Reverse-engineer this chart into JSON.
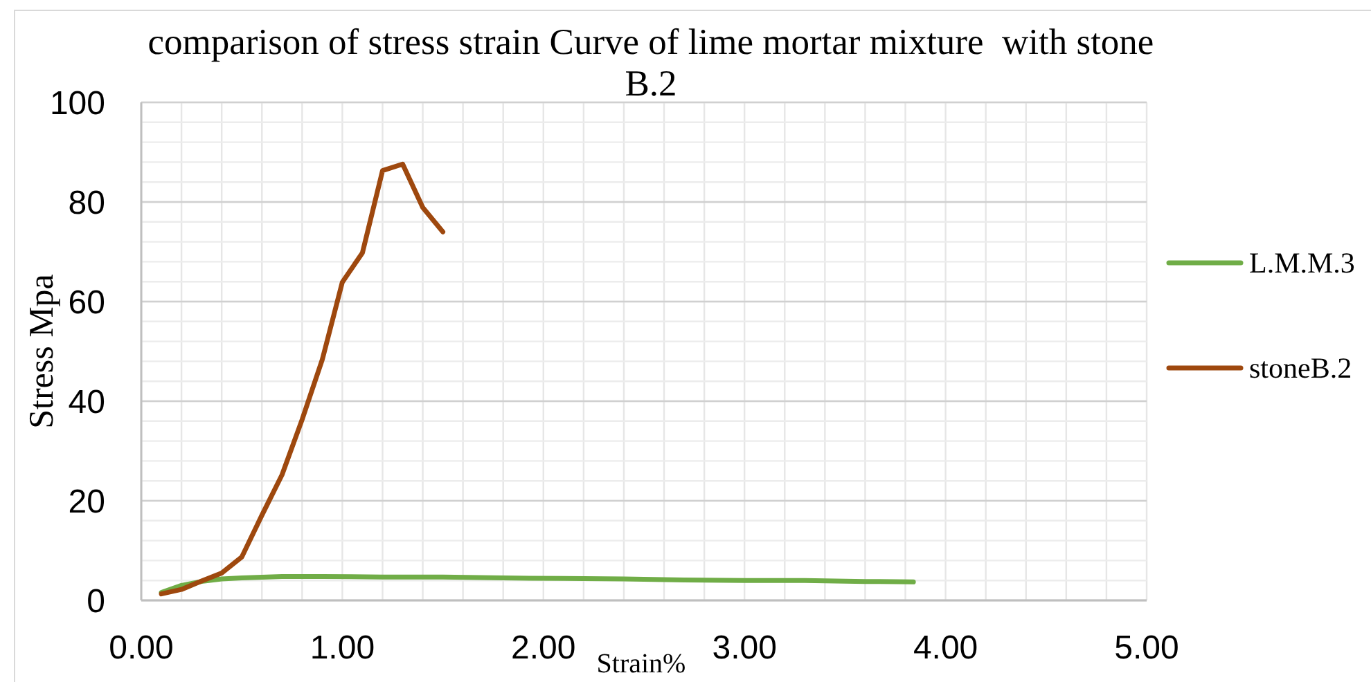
{
  "chart_data": {
    "type": "line",
    "title": "comparison of stress strain Curve of lime mortar mixture  with stone B.2",
    "xlabel": "Strain%",
    "ylabel": "Stress Mpa",
    "series": [
      {
        "name": "L.M.M.3",
        "color": "#70ad47",
        "x": [
          0.1,
          0.2,
          0.3,
          0.4,
          0.5,
          0.7,
          0.9,
          1.2,
          1.5,
          1.8,
          2.1,
          2.4,
          2.7,
          3.0,
          3.3,
          3.6,
          3.84
        ],
        "values": [
          1.6,
          3.0,
          3.8,
          4.3,
          4.5,
          4.8,
          4.8,
          4.7,
          4.7,
          4.5,
          4.4,
          4.3,
          4.1,
          4.0,
          4.0,
          3.8,
          3.7
        ]
      },
      {
        "name": "stoneB.2",
        "color": "#9e480e",
        "x": [
          0.1,
          0.2,
          0.3,
          0.4,
          0.5,
          0.6,
          0.7,
          0.8,
          0.9,
          1.0,
          1.1,
          1.2,
          1.3,
          1.4,
          1.5
        ],
        "values": [
          1.3,
          2.2,
          3.9,
          5.5,
          8.7,
          17.1,
          25.2,
          36.3,
          48.3,
          63.9,
          69.8,
          86.3,
          87.6,
          78.9,
          74.0
        ]
      }
    ],
    "xlim": [
      0,
      5
    ],
    "xticks": [
      {
        "value": 0,
        "label": "0.00"
      },
      {
        "value": 1,
        "label": "1.00"
      },
      {
        "value": 2,
        "label": "2.00"
      },
      {
        "value": 3,
        "label": "3.00"
      },
      {
        "value": 4,
        "label": "4.00"
      },
      {
        "value": 5,
        "label": "5.00"
      }
    ],
    "ylim": [
      0,
      100
    ],
    "yticks": [
      0,
      20,
      40,
      60,
      80,
      100
    ],
    "grid": true,
    "legend": "right",
    "marker": "none"
  }
}
